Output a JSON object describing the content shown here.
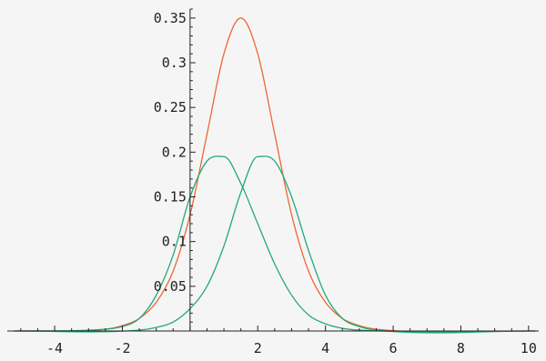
{
  "chart_data": {
    "type": "line",
    "title": "",
    "xlabel": "",
    "ylabel": "",
    "xlim": [
      -5.4,
      10.3
    ],
    "ylim": [
      -0.001,
      0.36
    ],
    "grid": false,
    "legend": "none",
    "x_ticks": [
      {
        "value": -4,
        "label": "-4"
      },
      {
        "value": -2,
        "label": "-2"
      },
      {
        "value": 2,
        "label": "2"
      },
      {
        "value": 4,
        "label": "4"
      },
      {
        "value": 6,
        "label": "6"
      },
      {
        "value": 8,
        "label": "8"
      },
      {
        "value": 10,
        "label": "10"
      }
    ],
    "y_ticks": [
      {
        "value": 0.05,
        "label": "0.05"
      },
      {
        "value": 0.1,
        "label": "0.1"
      },
      {
        "value": 0.15,
        "label": "0.15"
      },
      {
        "value": 0.2,
        "label": "0.2"
      },
      {
        "value": 0.25,
        "label": "0.25"
      },
      {
        "value": 0.3,
        "label": "0.3"
      },
      {
        "value": 0.35,
        "label": "0.35"
      }
    ],
    "x_minor_step": 0.5,
    "y_minor_step": 0.01,
    "series": [
      {
        "color": "#ee6633",
        "x": [
          -5.2,
          -2.5,
          -2.0,
          -1.5,
          -1.0,
          -0.5,
          0.0,
          0.5,
          1.0,
          1.5,
          2.0,
          2.5,
          3.0,
          3.5,
          4.0,
          4.5,
          5.0,
          5.5,
          10.2
        ],
        "y": [
          0.0,
          0.002,
          0.006,
          0.014,
          0.032,
          0.067,
          0.13,
          0.22,
          0.31,
          0.35,
          0.31,
          0.22,
          0.13,
          0.067,
          0.032,
          0.014,
          0.006,
          0.002,
          0.0
        ]
      },
      {
        "color": "#22aa77",
        "x": [
          -5.2,
          -2.5,
          -2.0,
          -1.5,
          -1.0,
          -0.5,
          0.0,
          0.5,
          1.0,
          1.5,
          2.0,
          2.5,
          3.0,
          3.5,
          4.0,
          4.5,
          5.0,
          10.2
        ],
        "y": [
          0.0,
          0.002,
          0.005,
          0.014,
          0.04,
          0.085,
          0.15,
          0.19,
          0.195,
          0.165,
          0.12,
          0.075,
          0.04,
          0.018,
          0.008,
          0.003,
          0.001,
          0.0
        ]
      },
      {
        "color": "#22aa77",
        "x": [
          -5.2,
          -1.5,
          -1.0,
          -0.5,
          0.0,
          0.5,
          1.0,
          1.5,
          2.0,
          2.5,
          3.0,
          3.5,
          4.0,
          4.5,
          5.0,
          5.5,
          10.2
        ],
        "y": [
          0.0,
          0.001,
          0.004,
          0.01,
          0.025,
          0.05,
          0.095,
          0.155,
          0.195,
          0.19,
          0.15,
          0.09,
          0.04,
          0.014,
          0.005,
          0.001,
          0.0
        ]
      }
    ]
  }
}
